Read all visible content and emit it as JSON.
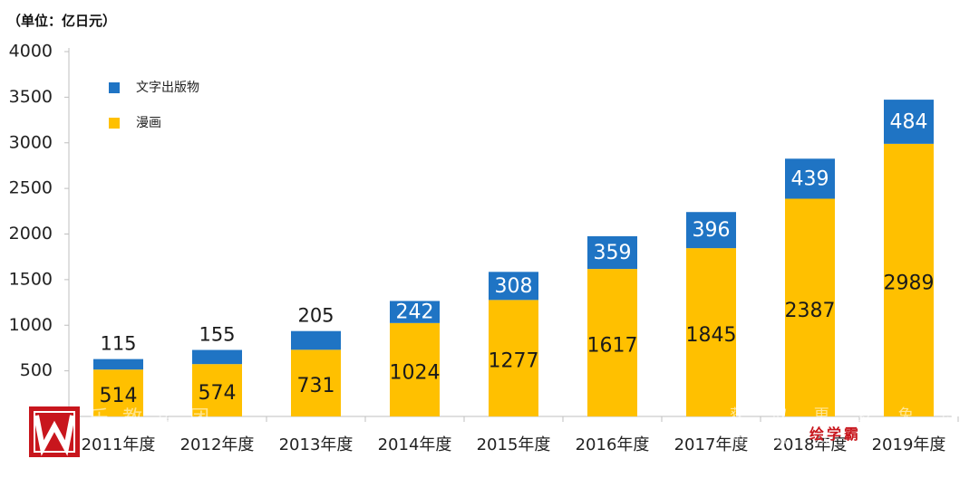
{
  "chart_data": {
    "type": "bar",
    "stacked": true,
    "unit_label": "（单位：亿日元）",
    "categories": [
      "2011年度",
      "2012年度",
      "2013年度",
      "2014年度",
      "2015年度",
      "2016年度",
      "2017年度",
      "2018年度",
      "2019年度"
    ],
    "series": [
      {
        "name": "漫画",
        "color": "#ffc000",
        "values": [
          514,
          574,
          731,
          1024,
          1277,
          1617,
          1845,
          2387,
          2989
        ]
      },
      {
        "name": "文字出版物",
        "color": "#1f74c4",
        "values": [
          115,
          155,
          205,
          242,
          308,
          359,
          396,
          439,
          484
        ]
      }
    ],
    "yticks": [
      500,
      1000,
      1500,
      2000,
      2500,
      3000,
      3500,
      4000
    ],
    "ylim": [
      0,
      4000
    ],
    "grid": false,
    "legend_position": "top-left"
  },
  "watermark": {
    "left_text": "乐 教 集 团",
    "right_text": "获 取 更 多 免 费 精 品 教 学",
    "brand": "绘学霸",
    "brand_color": "#c8161d"
  }
}
